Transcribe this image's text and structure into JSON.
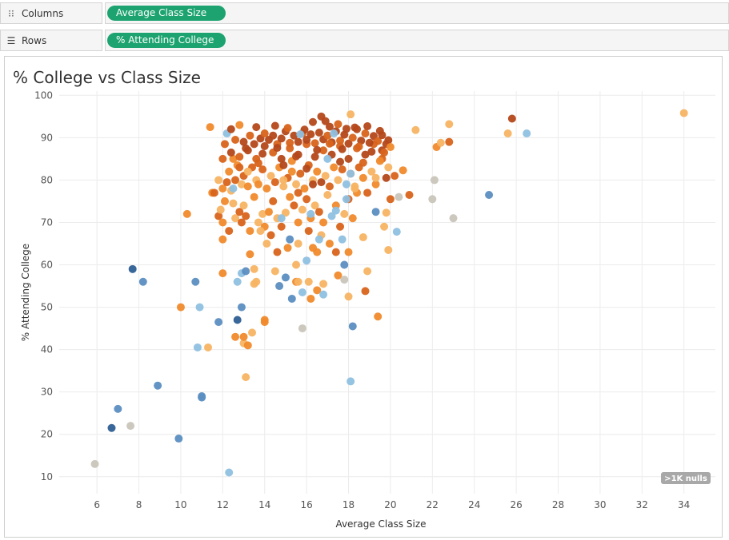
{
  "shelves": {
    "columns": {
      "label": "Columns",
      "pill": "Average Class Size",
      "icon": "columns-icon"
    },
    "rows": {
      "label": "Rows",
      "pill": "% Attending College",
      "icon": "rows-icon"
    }
  },
  "nulls_badge": ">1K nulls",
  "colors": {
    "pill": "#1ca36f",
    "palette": [
      "#2e5f94",
      "#5b8ec1",
      "#8fc0e0",
      "#c9c5bb",
      "#f7b463",
      "#f08a2c",
      "#d8641b",
      "#b4481a"
    ]
  },
  "chart_data": {
    "type": "scatter",
    "title": "% College vs Class Size",
    "xlabel": "Average Class Size",
    "ylabel": "% Attending College",
    "xlim": [
      4.2,
      35.5
    ],
    "ylim": [
      6,
      101
    ],
    "xticks": [
      6,
      8,
      10,
      12,
      14,
      16,
      18,
      20,
      22,
      24,
      26,
      28,
      30,
      32,
      34
    ],
    "yticks": [
      10,
      20,
      30,
      40,
      50,
      60,
      70,
      80,
      90,
      100
    ],
    "grid": true,
    "color_encoding": "diverging blue-orange (no legend shown)",
    "points": [
      [
        5.9,
        13,
        3
      ],
      [
        6.7,
        21.5,
        0
      ],
      [
        7.0,
        26,
        1
      ],
      [
        7.6,
        22,
        3
      ],
      [
        7.7,
        59,
        0
      ],
      [
        8.2,
        56,
        1
      ],
      [
        8.9,
        31.5,
        1
      ],
      [
        9.9,
        19,
        1
      ],
      [
        10.0,
        50,
        5
      ],
      [
        10.3,
        72,
        5
      ],
      [
        10.7,
        56,
        1
      ],
      [
        10.8,
        40.5,
        2
      ],
      [
        10.9,
        50,
        2
      ],
      [
        11.0,
        29,
        1
      ],
      [
        11.0,
        28.7,
        1
      ],
      [
        11.3,
        40.5,
        4
      ],
      [
        11.4,
        92.5,
        5
      ],
      [
        11.5,
        77,
        5
      ],
      [
        11.8,
        46.5,
        1
      ],
      [
        12.0,
        58,
        5
      ],
      [
        12.0,
        66,
        5
      ],
      [
        12.2,
        91,
        2
      ],
      [
        12.3,
        11,
        2
      ],
      [
        12.5,
        85,
        5
      ],
      [
        12.6,
        43,
        5
      ],
      [
        12.7,
        56,
        2
      ],
      [
        12.7,
        47,
        0
      ],
      [
        12.8,
        93,
        5
      ],
      [
        12.9,
        58,
        2
      ],
      [
        12.9,
        50,
        1
      ],
      [
        13.0,
        41.5,
        4
      ],
      [
        13.0,
        43,
        5
      ],
      [
        13.1,
        58.5,
        1
      ],
      [
        13.1,
        33.5,
        4
      ],
      [
        13.2,
        41,
        5
      ],
      [
        13.3,
        62.5,
        5
      ],
      [
        13.4,
        44,
        4
      ],
      [
        13.5,
        55.5,
        4
      ],
      [
        14.0,
        46.5,
        5
      ],
      [
        14.0,
        47,
        5
      ],
      [
        14.5,
        58.5,
        4
      ],
      [
        14.7,
        55,
        1
      ],
      [
        15.0,
        57,
        1
      ],
      [
        15.2,
        66,
        1
      ],
      [
        15.3,
        52,
        1
      ],
      [
        15.5,
        56,
        5
      ],
      [
        15.5,
        60,
        4
      ],
      [
        15.6,
        56,
        4
      ],
      [
        15.8,
        45,
        3
      ],
      [
        15.8,
        53.5,
        2
      ],
      [
        16.0,
        61,
        2
      ],
      [
        16.1,
        56,
        4
      ],
      [
        16.2,
        52,
        5
      ],
      [
        16.5,
        54,
        5
      ],
      [
        16.5,
        63,
        5
      ],
      [
        16.8,
        55.5,
        4
      ],
      [
        16.8,
        53,
        2
      ],
      [
        17.5,
        57.5,
        5
      ],
      [
        17.8,
        60,
        1
      ],
      [
        17.8,
        56.5,
        3
      ],
      [
        18.0,
        52.5,
        4
      ],
      [
        18.0,
        63,
        5
      ],
      [
        18.1,
        32.5,
        2
      ],
      [
        18.2,
        45.5,
        1
      ],
      [
        18.7,
        66.5,
        4
      ],
      [
        18.8,
        53.8,
        6
      ],
      [
        18.9,
        58.5,
        4
      ],
      [
        19.4,
        47.8,
        5
      ],
      [
        19.9,
        63.5,
        4
      ],
      [
        20.3,
        67.8,
        2
      ],
      [
        21.2,
        91.8,
        4
      ],
      [
        22.0,
        75.5,
        3
      ],
      [
        22.1,
        80,
        3
      ],
      [
        22.2,
        87.8,
        5
      ],
      [
        22.4,
        88.8,
        4
      ],
      [
        22.8,
        93.2,
        4
      ],
      [
        22.8,
        89,
        6
      ],
      [
        23.0,
        71,
        3
      ],
      [
        24.7,
        76.5,
        1
      ],
      [
        25.6,
        91,
        4
      ],
      [
        25.8,
        94.5,
        7
      ],
      [
        26.5,
        91,
        2
      ],
      [
        34.0,
        95.8,
        4
      ],
      [
        19.3,
        72.5,
        1
      ],
      [
        19.7,
        69,
        4
      ],
      [
        19.8,
        72.3,
        4
      ],
      [
        20.0,
        75.5,
        6
      ],
      [
        20.2,
        81,
        6
      ],
      [
        20.4,
        76,
        3
      ],
      [
        20.6,
        82.3,
        5
      ],
      [
        20.9,
        76.5,
        6
      ],
      [
        11.8,
        71.5,
        6
      ],
      [
        11.9,
        73,
        4
      ],
      [
        12.0,
        70,
        5
      ],
      [
        12.1,
        75,
        5
      ],
      [
        12.3,
        68,
        6
      ],
      [
        12.5,
        74.5,
        4
      ],
      [
        12.6,
        71,
        4
      ],
      [
        12.8,
        72.5,
        6
      ],
      [
        12.9,
        70,
        6
      ],
      [
        13.0,
        74,
        4
      ],
      [
        13.1,
        71.5,
        6
      ],
      [
        13.3,
        68,
        5
      ],
      [
        13.5,
        76,
        5
      ],
      [
        13.7,
        70,
        4
      ],
      [
        13.9,
        72,
        4
      ],
      [
        14.0,
        69,
        5
      ],
      [
        14.2,
        72.5,
        5
      ],
      [
        14.4,
        75,
        6
      ],
      [
        14.6,
        71,
        4
      ],
      [
        14.8,
        69,
        6
      ],
      [
        15.0,
        72.3,
        4
      ],
      [
        15.2,
        76,
        5
      ],
      [
        15.4,
        74,
        6
      ],
      [
        15.6,
        70,
        5
      ],
      [
        15.8,
        73,
        4
      ],
      [
        16.0,
        75.5,
        6
      ],
      [
        16.2,
        71,
        5
      ],
      [
        16.4,
        74,
        4
      ],
      [
        16.6,
        72.5,
        6
      ],
      [
        16.8,
        70,
        5
      ],
      [
        17.0,
        76.5,
        4
      ],
      [
        17.2,
        71.5,
        2
      ],
      [
        17.4,
        74,
        5
      ],
      [
        17.6,
        69,
        6
      ],
      [
        17.8,
        72,
        4
      ],
      [
        18.0,
        75.5,
        6
      ],
      [
        18.2,
        71,
        5
      ],
      [
        18.4,
        77,
        5
      ],
      [
        13.8,
        68,
        4
      ],
      [
        14.1,
        65,
        4
      ],
      [
        14.3,
        67,
        6
      ],
      [
        14.6,
        63,
        6
      ],
      [
        15.1,
        64,
        5
      ],
      [
        15.6,
        65,
        4
      ],
      [
        16.1,
        68,
        6
      ],
      [
        16.3,
        64,
        5
      ],
      [
        16.7,
        67,
        4
      ],
      [
        17.1,
        65,
        5
      ],
      [
        17.4,
        63,
        6
      ],
      [
        17.7,
        66,
        2
      ],
      [
        11.6,
        77,
        6
      ],
      [
        11.8,
        80,
        4
      ],
      [
        12.0,
        78,
        5
      ],
      [
        12.2,
        79.5,
        6
      ],
      [
        12.3,
        82,
        5
      ],
      [
        12.4,
        77.5,
        4
      ],
      [
        12.6,
        80,
        6
      ],
      [
        12.7,
        83.5,
        5
      ],
      [
        12.9,
        79,
        4
      ],
      [
        13.0,
        81,
        6
      ],
      [
        13.2,
        78.5,
        5
      ],
      [
        13.4,
        83,
        6
      ],
      [
        13.6,
        80,
        4
      ],
      [
        13.7,
        79,
        5
      ],
      [
        13.9,
        82.5,
        6
      ],
      [
        14.1,
        78,
        5
      ],
      [
        14.3,
        81,
        4
      ],
      [
        14.5,
        79.5,
        6
      ],
      [
        14.7,
        83,
        5
      ],
      [
        14.9,
        78.5,
        4
      ],
      [
        15.1,
        80.5,
        6
      ],
      [
        15.3,
        82,
        5
      ],
      [
        15.5,
        79,
        4
      ],
      [
        15.7,
        81.5,
        6
      ],
      [
        15.9,
        78,
        5
      ],
      [
        16.1,
        83.5,
        6
      ],
      [
        16.3,
        80,
        4
      ],
      [
        16.5,
        82,
        5
      ],
      [
        16.7,
        79.5,
        7
      ],
      [
        16.9,
        81,
        4
      ],
      [
        17.1,
        78.5,
        6
      ],
      [
        17.3,
        83,
        5
      ],
      [
        17.5,
        80,
        4
      ],
      [
        17.7,
        82.5,
        6
      ],
      [
        17.9,
        79,
        2
      ],
      [
        18.1,
        81.5,
        5
      ],
      [
        18.3,
        78,
        4
      ],
      [
        18.5,
        83,
        6
      ],
      [
        18.7,
        80.5,
        5
      ],
      [
        18.9,
        77,
        6
      ],
      [
        19.1,
        82,
        4
      ],
      [
        19.3,
        79,
        5
      ],
      [
        19.6,
        85,
        6
      ],
      [
        19.8,
        80.5,
        7
      ],
      [
        12.0,
        85,
        6
      ],
      [
        12.4,
        86.5,
        7
      ],
      [
        12.8,
        85.5,
        6
      ],
      [
        13.2,
        87,
        7
      ],
      [
        13.6,
        85,
        6
      ],
      [
        14.0,
        88,
        7
      ],
      [
        14.4,
        86.5,
        6
      ],
      [
        14.8,
        85,
        7
      ],
      [
        15.2,
        87.5,
        6
      ],
      [
        15.6,
        86,
        7
      ],
      [
        16.0,
        88.5,
        6
      ],
      [
        16.4,
        85.5,
        7
      ],
      [
        16.8,
        87,
        6
      ],
      [
        17.2,
        86,
        7
      ],
      [
        17.6,
        88,
        6
      ],
      [
        18.0,
        85,
        7
      ],
      [
        18.4,
        87.5,
        6
      ],
      [
        18.8,
        86,
        7
      ],
      [
        19.2,
        88.5,
        6
      ],
      [
        19.6,
        87,
        7
      ],
      [
        13.0,
        89,
        7
      ],
      [
        13.3,
        90.5,
        6
      ],
      [
        13.5,
        88.5,
        7
      ],
      [
        13.8,
        89.8,
        7
      ],
      [
        14.0,
        91,
        6
      ],
      [
        14.2,
        89.5,
        7
      ],
      [
        14.4,
        90.5,
        7
      ],
      [
        14.6,
        88.5,
        6
      ],
      [
        14.8,
        89.8,
        7
      ],
      [
        15.0,
        91.5,
        7
      ],
      [
        15.2,
        88.8,
        6
      ],
      [
        15.4,
        90.5,
        7
      ],
      [
        15.6,
        89,
        7
      ],
      [
        15.8,
        91,
        6
      ],
      [
        16.0,
        89.5,
        7
      ],
      [
        16.2,
        90.8,
        7
      ],
      [
        16.4,
        88.7,
        6
      ],
      [
        16.6,
        91.2,
        7
      ],
      [
        16.8,
        89.6,
        7
      ],
      [
        17.0,
        90.5,
        6
      ],
      [
        17.2,
        88.9,
        7
      ],
      [
        17.4,
        91.5,
        7
      ],
      [
        17.6,
        89.3,
        6
      ],
      [
        17.8,
        90.7,
        7
      ],
      [
        18.0,
        88.6,
        7
      ],
      [
        18.2,
        90,
        6
      ],
      [
        18.4,
        92,
        7
      ],
      [
        18.6,
        89.3,
        7
      ],
      [
        18.8,
        91,
        6
      ],
      [
        19.0,
        88.8,
        7
      ],
      [
        19.2,
        90.4,
        7
      ],
      [
        19.4,
        89.2,
        6
      ],
      [
        19.6,
        90.6,
        7
      ],
      [
        19.8,
        88.5,
        7
      ],
      [
        12.1,
        88.5,
        6
      ],
      [
        12.4,
        92,
        7
      ],
      [
        13.6,
        92.5,
        7
      ],
      [
        14.5,
        92.8,
        7
      ],
      [
        15.1,
        92.3,
        6
      ],
      [
        15.9,
        91.9,
        7
      ],
      [
        16.3,
        93.7,
        7
      ],
      [
        16.7,
        95,
        7
      ],
      [
        17.1,
        92.6,
        7
      ],
      [
        17.5,
        93.2,
        6
      ],
      [
        17.9,
        92.1,
        7
      ],
      [
        18.1,
        95.5,
        4
      ],
      [
        18.3,
        92.4,
        7
      ],
      [
        18.9,
        92.7,
        7
      ],
      [
        19.5,
        91.6,
        7
      ],
      [
        19.9,
        89.4,
        7
      ],
      [
        16.9,
        93.9,
        7
      ],
      [
        15.7,
        90.8,
        2
      ],
      [
        17.3,
        91,
        2
      ],
      [
        17.0,
        85,
        2
      ],
      [
        18.1,
        81.5,
        2
      ],
      [
        17.4,
        72.8,
        2
      ],
      [
        16.2,
        72,
        2
      ],
      [
        17.9,
        75.5,
        2
      ],
      [
        13.2,
        82,
        4
      ],
      [
        14.8,
        71,
        2
      ],
      [
        16.6,
        66,
        2
      ],
      [
        18.3,
        78.5,
        4
      ],
      [
        19.3,
        80.5,
        4
      ],
      [
        12.5,
        78,
        2
      ],
      [
        14.9,
        80,
        4
      ],
      [
        15.3,
        84.5,
        5
      ],
      [
        14.9,
        83.5,
        7
      ],
      [
        15.6,
        77,
        6
      ],
      [
        16.3,
        79,
        7
      ],
      [
        17.6,
        84.3,
        7
      ],
      [
        18.7,
        84.1,
        6
      ],
      [
        19.7,
        86.5,
        6
      ],
      [
        20.0,
        87.8,
        5
      ],
      [
        19.9,
        83,
        4
      ],
      [
        13.9,
        86.2,
        7
      ],
      [
        13.7,
        84,
        6
      ],
      [
        12.8,
        83,
        6
      ],
      [
        13.1,
        87.5,
        7
      ],
      [
        14.6,
        87.6,
        7
      ],
      [
        15.5,
        85.6,
        7
      ],
      [
        16.5,
        87.1,
        7
      ],
      [
        17.1,
        88.6,
        6
      ],
      [
        17.7,
        87.3,
        7
      ],
      [
        18.5,
        87.9,
        6
      ],
      [
        19.1,
        86.7,
        7
      ],
      [
        19.5,
        84.5,
        5
      ],
      [
        12.6,
        89.5,
        6
      ],
      [
        16.0,
        82.7,
        7
      ],
      [
        13.5,
        59,
        4
      ],
      [
        13.6,
        56,
        4
      ]
    ]
  }
}
